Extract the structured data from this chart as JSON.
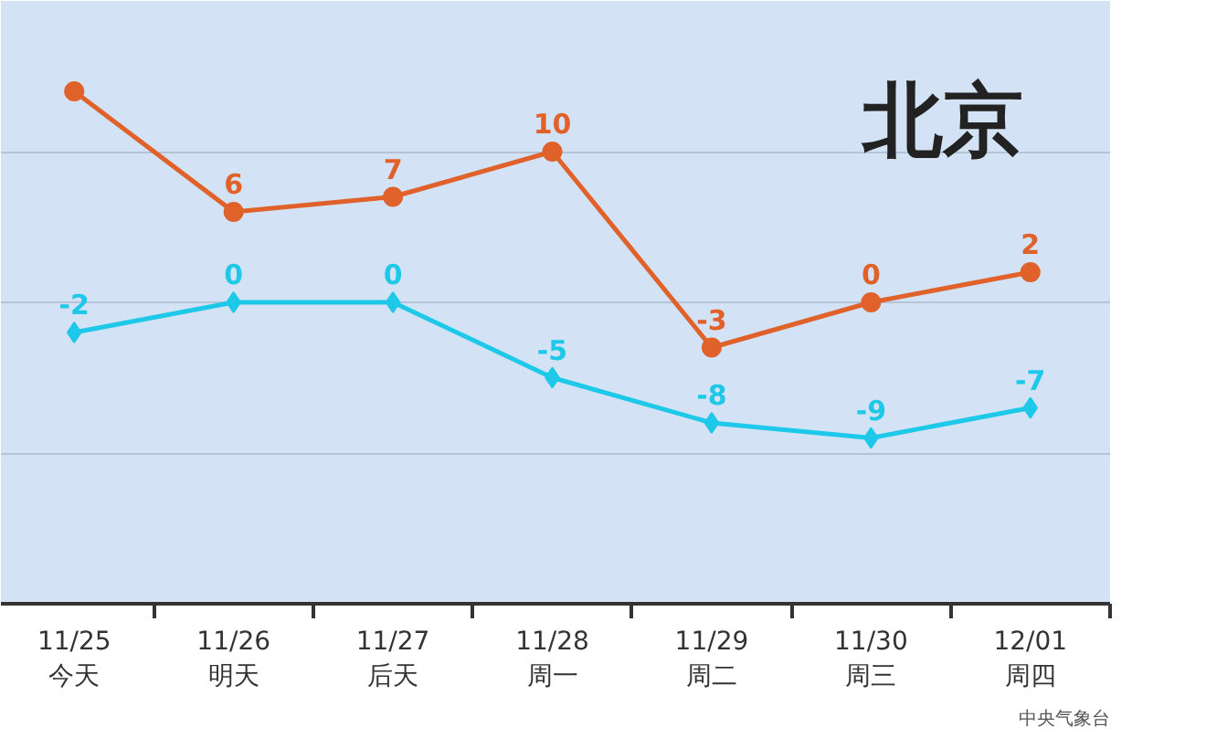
{
  "chart_data": {
    "type": "line",
    "title": "北京",
    "categories": [
      "11/25\n今天",
      "11/26\n明天",
      "11/27\n后天",
      "11/28\n周一",
      "11/29\n周二",
      "11/30\n周三",
      "12/01\n周四"
    ],
    "series": [
      {
        "color": "#e0622a",
        "marker": "circle",
        "values": [
          14,
          6,
          7,
          10,
          -3,
          0,
          2
        ],
        "value_labels": [
          null,
          "6",
          "7",
          "10",
          "-3",
          "0",
          "2"
        ]
      },
      {
        "color": "#1ec8e8",
        "marker": "diamond",
        "values": [
          -2,
          0,
          0,
          -5,
          -8,
          -9,
          -7
        ],
        "value_labels": [
          "-2",
          "0",
          "0",
          "-5",
          "-8",
          "-9",
          "-7"
        ]
      }
    ],
    "ylim": [
      -20,
      20
    ],
    "yticks": [
      {
        "value": -10,
        "label": null
      },
      {
        "value": 0,
        "label": null
      },
      {
        "value": 10,
        "label": null
      }
    ],
    "grid": "y",
    "tick_labels": "x",
    "annotations": [
      "中央气象台"
    ]
  }
}
